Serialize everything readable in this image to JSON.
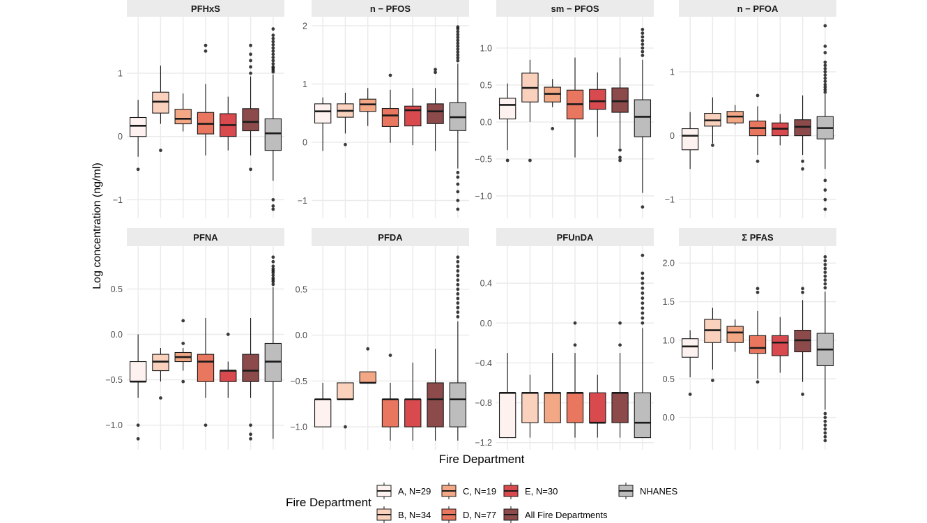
{
  "figure": {
    "xlabel": "Fire Department",
    "ylabel": "Log concentration (ng/ml)",
    "legend_title": "Fire Department"
  },
  "groups": [
    {
      "name": "A, N=29",
      "color": "#fdf2ef"
    },
    {
      "name": "B, N=34",
      "color": "#f9d1bd"
    },
    {
      "name": "C, N=19",
      "color": "#f2a785"
    },
    {
      "name": "D, N=77",
      "color": "#e9775f"
    },
    {
      "name": "E, N=30",
      "color": "#d94a4f"
    },
    {
      "name": "All Fire Departments",
      "color": "#8c4a4a"
    },
    {
      "name": "NHANES",
      "color": "#bdbdbd"
    }
  ],
  "chart_data": [
    {
      "type": "box",
      "title": "PFHxS",
      "ylim": [
        -1.15,
        1.75
      ],
      "yticks": [
        -1,
        0,
        1
      ],
      "ytick_labels": [
        "−1",
        "0",
        "1"
      ],
      "boxes": [
        {
          "group": "A, N=29",
          "whisker_low": -0.32,
          "q1": 0.0,
          "median": 0.17,
          "q3": 0.3,
          "whisker_high": 0.58,
          "outliers": [
            -0.52
          ]
        },
        {
          "group": "B, N=34",
          "whisker_low": 0.2,
          "q1": 0.37,
          "median": 0.55,
          "q3": 0.7,
          "whisker_high": 1.12,
          "outliers": [
            -0.22
          ]
        },
        {
          "group": "C, N=19",
          "whisker_low": 0.08,
          "q1": 0.2,
          "median": 0.28,
          "q3": 0.43,
          "whisker_high": 0.68,
          "outliers": []
        },
        {
          "group": "D, N=77",
          "whisker_low": -0.3,
          "q1": 0.04,
          "median": 0.2,
          "q3": 0.38,
          "whisker_high": 0.83,
          "outliers": [
            1.35,
            1.44
          ]
        },
        {
          "group": "E, N=30",
          "whisker_low": -0.22,
          "q1": 0.0,
          "median": 0.18,
          "q3": 0.36,
          "whisker_high": 0.63,
          "outliers": []
        },
        {
          "group": "All Fire Departments",
          "whisker_low": -0.3,
          "q1": 0.09,
          "median": 0.23,
          "q3": 0.44,
          "whisker_high": 0.95,
          "outliers": [
            -0.52,
            1.0,
            1.1,
            1.2,
            1.3,
            1.44
          ]
        },
        {
          "group": "NHANES",
          "whisker_low": -0.7,
          "q1": -0.22,
          "median": 0.05,
          "q3": 0.28,
          "whisker_high": 0.98,
          "outliers": [
            -1.0,
            -1.1,
            -1.15,
            1.02,
            1.05,
            1.08,
            1.1,
            1.15,
            1.2,
            1.25,
            1.3,
            1.35,
            1.4,
            1.45,
            1.5,
            1.55,
            1.6,
            1.7
          ]
        }
      ]
    },
    {
      "type": "box",
      "title": "n − PFOS",
      "ylim": [
        -1.15,
        2.0
      ],
      "yticks": [
        -1,
        0,
        1,
        2
      ],
      "ytick_labels": [
        "−1",
        "0",
        "1",
        "2"
      ],
      "boxes": [
        {
          "group": "A, N=29",
          "whisker_low": -0.15,
          "q1": 0.33,
          "median": 0.53,
          "q3": 0.66,
          "whisker_high": 0.77,
          "outliers": []
        },
        {
          "group": "B, N=34",
          "whisker_low": 0.15,
          "q1": 0.43,
          "median": 0.54,
          "q3": 0.66,
          "whisker_high": 0.85,
          "outliers": [
            -0.04
          ]
        },
        {
          "group": "C, N=19",
          "whisker_low": 0.28,
          "q1": 0.53,
          "median": 0.65,
          "q3": 0.74,
          "whisker_high": 0.93,
          "outliers": []
        },
        {
          "group": "D, N=77",
          "whisker_low": -0.01,
          "q1": 0.27,
          "median": 0.46,
          "q3": 0.58,
          "whisker_high": 0.9,
          "outliers": [
            1.15
          ]
        },
        {
          "group": "E, N=30",
          "whisker_low": -0.05,
          "q1": 0.28,
          "median": 0.55,
          "q3": 0.62,
          "whisker_high": 0.93,
          "outliers": []
        },
        {
          "group": "All Fire Departments",
          "whisker_low": -0.15,
          "q1": 0.32,
          "median": 0.53,
          "q3": 0.66,
          "whisker_high": 0.93,
          "outliers": [
            1.2,
            1.25
          ]
        },
        {
          "group": "NHANES",
          "whisker_low": -0.45,
          "q1": 0.2,
          "median": 0.43,
          "q3": 0.68,
          "whisker_high": 1.35,
          "outliers": [
            -0.52,
            -0.6,
            -0.72,
            -0.85,
            -1.0,
            -1.15,
            1.4,
            1.45,
            1.5,
            1.55,
            1.6,
            1.65,
            1.7,
            1.75,
            1.8,
            1.85,
            1.9,
            1.95,
            1.98
          ]
        }
      ]
    },
    {
      "type": "box",
      "title": "sm − PFOS",
      "ylim": [
        -1.18,
        1.3
      ],
      "yticks": [
        -1.0,
        -0.5,
        0.0,
        0.5,
        1.0
      ],
      "ytick_labels": [
        "−1.0",
        "−0.5",
        "0.0",
        "0.5",
        "1.0"
      ],
      "boxes": [
        {
          "group": "A, N=29",
          "whisker_low": -0.38,
          "q1": 0.04,
          "median": 0.23,
          "q3": 0.32,
          "whisker_high": 0.52,
          "outliers": [
            -0.52
          ]
        },
        {
          "group": "B, N=34",
          "whisker_low": 0.0,
          "q1": 0.27,
          "median": 0.46,
          "q3": 0.66,
          "whisker_high": 0.84,
          "outliers": [
            -0.52
          ]
        },
        {
          "group": "C, N=19",
          "whisker_low": 0.2,
          "q1": 0.27,
          "median": 0.38,
          "q3": 0.47,
          "whisker_high": 0.58,
          "outliers": [
            -0.09
          ]
        },
        {
          "group": "D, N=77",
          "whisker_low": -0.48,
          "q1": 0.04,
          "median": 0.24,
          "q3": 0.43,
          "whisker_high": 0.87,
          "outliers": []
        },
        {
          "group": "E, N=30",
          "whisker_low": -0.2,
          "q1": 0.17,
          "median": 0.28,
          "q3": 0.44,
          "whisker_high": 0.67,
          "outliers": []
        },
        {
          "group": "All Fire Departments",
          "whisker_low": -0.35,
          "q1": 0.13,
          "median": 0.28,
          "q3": 0.46,
          "whisker_high": 0.87,
          "outliers": [
            -0.38,
            -0.48,
            -0.52
          ]
        },
        {
          "group": "NHANES",
          "whisker_low": -0.96,
          "q1": -0.2,
          "median": 0.07,
          "q3": 0.3,
          "whisker_high": 0.84,
          "outliers": [
            -1.15,
            0.9,
            0.95,
            1.0,
            1.05,
            1.1,
            1.15,
            1.2,
            1.25
          ]
        }
      ]
    },
    {
      "type": "box",
      "title": "n − PFOA",
      "ylim": [
        -1.15,
        1.72
      ],
      "yticks": [
        -1,
        0,
        1
      ],
      "ytick_labels": [
        "−1",
        "0",
        "1"
      ],
      "boxes": [
        {
          "group": "A, N=29",
          "whisker_low": -0.52,
          "q1": -0.22,
          "median": 0.0,
          "q3": 0.11,
          "whisker_high": 0.37,
          "outliers": []
        },
        {
          "group": "B, N=34",
          "whisker_low": -0.12,
          "q1": 0.15,
          "median": 0.24,
          "q3": 0.35,
          "whisker_high": 0.6,
          "outliers": [
            -0.15
          ]
        },
        {
          "group": "C, N=19",
          "whisker_low": 0.17,
          "q1": 0.2,
          "median": 0.3,
          "q3": 0.38,
          "whisker_high": 0.48,
          "outliers": []
        },
        {
          "group": "D, N=77",
          "whisker_low": -0.3,
          "q1": 0.0,
          "median": 0.12,
          "q3": 0.23,
          "whisker_high": 0.46,
          "outliers": [
            -0.4,
            0.63
          ]
        },
        {
          "group": "E, N=30",
          "whisker_low": -0.15,
          "q1": 0.0,
          "median": 0.11,
          "q3": 0.2,
          "whisker_high": 0.34,
          "outliers": []
        },
        {
          "group": "All Fire Departments",
          "whisker_low": -0.3,
          "q1": 0.0,
          "median": 0.14,
          "q3": 0.25,
          "whisker_high": 0.63,
          "outliers": [
            -0.4,
            -0.52
          ]
        },
        {
          "group": "NHANES",
          "whisker_low": -0.52,
          "q1": -0.05,
          "median": 0.12,
          "q3": 0.3,
          "whisker_high": 0.65,
          "outliers": [
            -0.7,
            -0.85,
            -1.0,
            -1.15,
            0.68,
            0.72,
            0.76,
            0.8,
            0.85,
            0.9,
            0.95,
            1.0,
            1.05,
            1.1,
            1.15,
            1.3,
            1.4,
            1.72
          ]
        }
      ]
    },
    {
      "type": "box",
      "title": "PFNA",
      "ylim": [
        -1.17,
        0.87
      ],
      "yticks": [
        -1.0,
        -0.5,
        0.0,
        0.5
      ],
      "ytick_labels": [
        "−1.0",
        "−0.5",
        "0.0",
        "0.5"
      ],
      "boxes": [
        {
          "group": "A, N=29",
          "whisker_low": -0.7,
          "q1": -0.52,
          "median": -0.52,
          "q3": -0.3,
          "whisker_high": 0.0,
          "outliers": [
            -1.0,
            -1.15
          ]
        },
        {
          "group": "B, N=34",
          "whisker_low": -0.52,
          "q1": -0.4,
          "median": -0.3,
          "q3": -0.22,
          "whisker_high": -0.15,
          "outliers": [
            -0.7
          ]
        },
        {
          "group": "C, N=19",
          "whisker_low": -0.4,
          "q1": -0.3,
          "median": -0.25,
          "q3": -0.2,
          "whisker_high": -0.15,
          "outliers": [
            -0.52,
            -0.1,
            0.15
          ]
        },
        {
          "group": "D, N=77",
          "whisker_low": -0.7,
          "q1": -0.52,
          "median": -0.3,
          "q3": -0.22,
          "whisker_high": 0.18,
          "outliers": [
            -1.0
          ]
        },
        {
          "group": "E, N=30",
          "whisker_low": -0.7,
          "q1": -0.52,
          "median": -0.4,
          "q3": -0.4,
          "whisker_high": -0.3,
          "outliers": [
            0.0
          ]
        },
        {
          "group": "All Fire Departments",
          "whisker_low": -0.7,
          "q1": -0.52,
          "median": -0.4,
          "q3": -0.22,
          "whisker_high": 0.18,
          "outliers": [
            -1.0,
            -1.1,
            -1.15
          ]
        },
        {
          "group": "NHANES",
          "whisker_low": -1.15,
          "q1": -0.52,
          "median": -0.3,
          "q3": -0.1,
          "whisker_high": 0.52,
          "outliers": [
            0.55,
            0.58,
            0.6,
            0.62,
            0.65,
            0.68,
            0.7,
            0.72,
            0.75,
            0.8,
            0.85
          ]
        }
      ]
    },
    {
      "type": "box",
      "title": "PFDA",
      "ylim": [
        -1.15,
        0.87
      ],
      "yticks": [
        -1.0,
        -0.5,
        0.0,
        0.5
      ],
      "ytick_labels": [
        "−1.0",
        "−0.5",
        "0.0",
        "0.5"
      ],
      "boxes": [
        {
          "group": "A, N=29",
          "whisker_low": -1.0,
          "q1": -1.0,
          "median": -0.7,
          "q3": -0.7,
          "whisker_high": -0.52,
          "outliers": []
        },
        {
          "group": "B, N=34",
          "whisker_low": -0.7,
          "q1": -0.7,
          "median": -0.7,
          "q3": -0.52,
          "whisker_high": -0.52,
          "outliers": [
            -1.0
          ]
        },
        {
          "group": "C, N=19",
          "whisker_low": -0.52,
          "q1": -0.52,
          "median": -0.52,
          "q3": -0.4,
          "whisker_high": -0.4,
          "outliers": [
            -0.15
          ]
        },
        {
          "group": "D, N=77",
          "whisker_low": -1.15,
          "q1": -1.0,
          "median": -0.7,
          "q3": -0.7,
          "whisker_high": -0.52,
          "outliers": [
            -0.22
          ]
        },
        {
          "group": "E, N=30",
          "whisker_low": -1.15,
          "q1": -1.0,
          "median": -0.7,
          "q3": -0.7,
          "whisker_high": -0.3,
          "outliers": []
        },
        {
          "group": "All Fire Departments",
          "whisker_low": -1.15,
          "q1": -1.0,
          "median": -0.7,
          "q3": -0.52,
          "whisker_high": -0.15,
          "outliers": []
        },
        {
          "group": "NHANES",
          "whisker_low": -1.15,
          "q1": -1.0,
          "median": -0.7,
          "q3": -0.52,
          "whisker_high": 0.15,
          "outliers": [
            0.2,
            0.25,
            0.3,
            0.35,
            0.4,
            0.45,
            0.5,
            0.55,
            0.6,
            0.65,
            0.7,
            0.75,
            0.8,
            0.85
          ]
        }
      ]
    },
    {
      "type": "box",
      "title": "PFUnDA",
      "ylim": [
        -1.18,
        0.68
      ],
      "yticks": [
        -1.2,
        -0.8,
        -0.4,
        0.0,
        0.4
      ],
      "ytick_labels": [
        "−1.2",
        "−0.8",
        "−0.4",
        "0.0",
        "0.4"
      ],
      "boxes": [
        {
          "group": "A, N=29",
          "whisker_low": -1.15,
          "q1": -1.15,
          "median": -0.7,
          "q3": -0.7,
          "whisker_high": -0.3,
          "outliers": []
        },
        {
          "group": "B, N=34",
          "whisker_low": -1.15,
          "q1": -1.0,
          "median": -0.7,
          "q3": -0.7,
          "whisker_high": -0.52,
          "outliers": []
        },
        {
          "group": "C, N=19",
          "whisker_low": -1.0,
          "q1": -1.0,
          "median": -0.7,
          "q3": -0.7,
          "whisker_high": -0.3,
          "outliers": []
        },
        {
          "group": "D, N=77",
          "whisker_low": -1.15,
          "q1": -1.0,
          "median": -0.7,
          "q3": -0.7,
          "whisker_high": -0.3,
          "outliers": [
            -0.22,
            0.0
          ]
        },
        {
          "group": "E, N=30",
          "whisker_low": -1.15,
          "q1": -1.0,
          "median": -1.0,
          "q3": -0.7,
          "whisker_high": -0.52,
          "outliers": []
        },
        {
          "group": "All Fire Departments",
          "whisker_low": -1.15,
          "q1": -1.0,
          "median": -0.7,
          "q3": -0.7,
          "whisker_high": -0.3,
          "outliers": [
            -0.22,
            0.0
          ]
        },
        {
          "group": "NHANES",
          "whisker_low": -1.15,
          "q1": -1.15,
          "median": -1.0,
          "q3": -0.7,
          "whisker_high": -0.05,
          "outliers": [
            0.0,
            0.05,
            0.1,
            0.15,
            0.2,
            0.25,
            0.3,
            0.35,
            0.4,
            0.45,
            0.5,
            0.68
          ]
        }
      ]
    },
    {
      "type": "box",
      "title": "Σ PFAS",
      "ylim": [
        -0.3,
        2.1
      ],
      "yticks": [
        0.0,
        0.5,
        1.0,
        1.5,
        2.0
      ],
      "ytick_labels": [
        "0.0",
        "0.5",
        "1.0",
        "1.5",
        "2.0"
      ],
      "boxes": [
        {
          "group": "A, N=29",
          "whisker_low": 0.52,
          "q1": 0.78,
          "median": 0.92,
          "q3": 1.02,
          "whisker_high": 1.13,
          "outliers": [
            0.3
          ]
        },
        {
          "group": "B, N=34",
          "whisker_low": 0.62,
          "q1": 0.97,
          "median": 1.13,
          "q3": 1.27,
          "whisker_high": 1.42,
          "outliers": [
            0.48
          ]
        },
        {
          "group": "C, N=19",
          "whisker_low": 0.85,
          "q1": 0.97,
          "median": 1.1,
          "q3": 1.18,
          "whisker_high": 1.27,
          "outliers": []
        },
        {
          "group": "D, N=77",
          "whisker_low": 0.5,
          "q1": 0.83,
          "median": 0.9,
          "q3": 1.06,
          "whisker_high": 1.38,
          "outliers": [
            0.46,
            1.62,
            1.67
          ]
        },
        {
          "group": "E, N=30",
          "whisker_low": 0.58,
          "q1": 0.8,
          "median": 0.97,
          "q3": 1.06,
          "whisker_high": 1.3,
          "outliers": []
        },
        {
          "group": "All Fire Departments",
          "whisker_low": 0.46,
          "q1": 0.85,
          "median": 1.0,
          "q3": 1.13,
          "whisker_high": 1.52,
          "outliers": [
            0.3,
            1.62,
            1.67
          ]
        },
        {
          "group": "NHANES",
          "whisker_low": 0.1,
          "q1": 0.67,
          "median": 0.88,
          "q3": 1.09,
          "whisker_high": 1.63,
          "outliers": [
            -0.3,
            -0.25,
            -0.2,
            -0.15,
            -0.1,
            -0.05,
            0.0,
            0.05,
            1.68,
            1.73,
            1.78,
            1.83,
            1.88,
            1.93,
            1.98,
            2.03,
            2.08
          ]
        }
      ]
    }
  ]
}
